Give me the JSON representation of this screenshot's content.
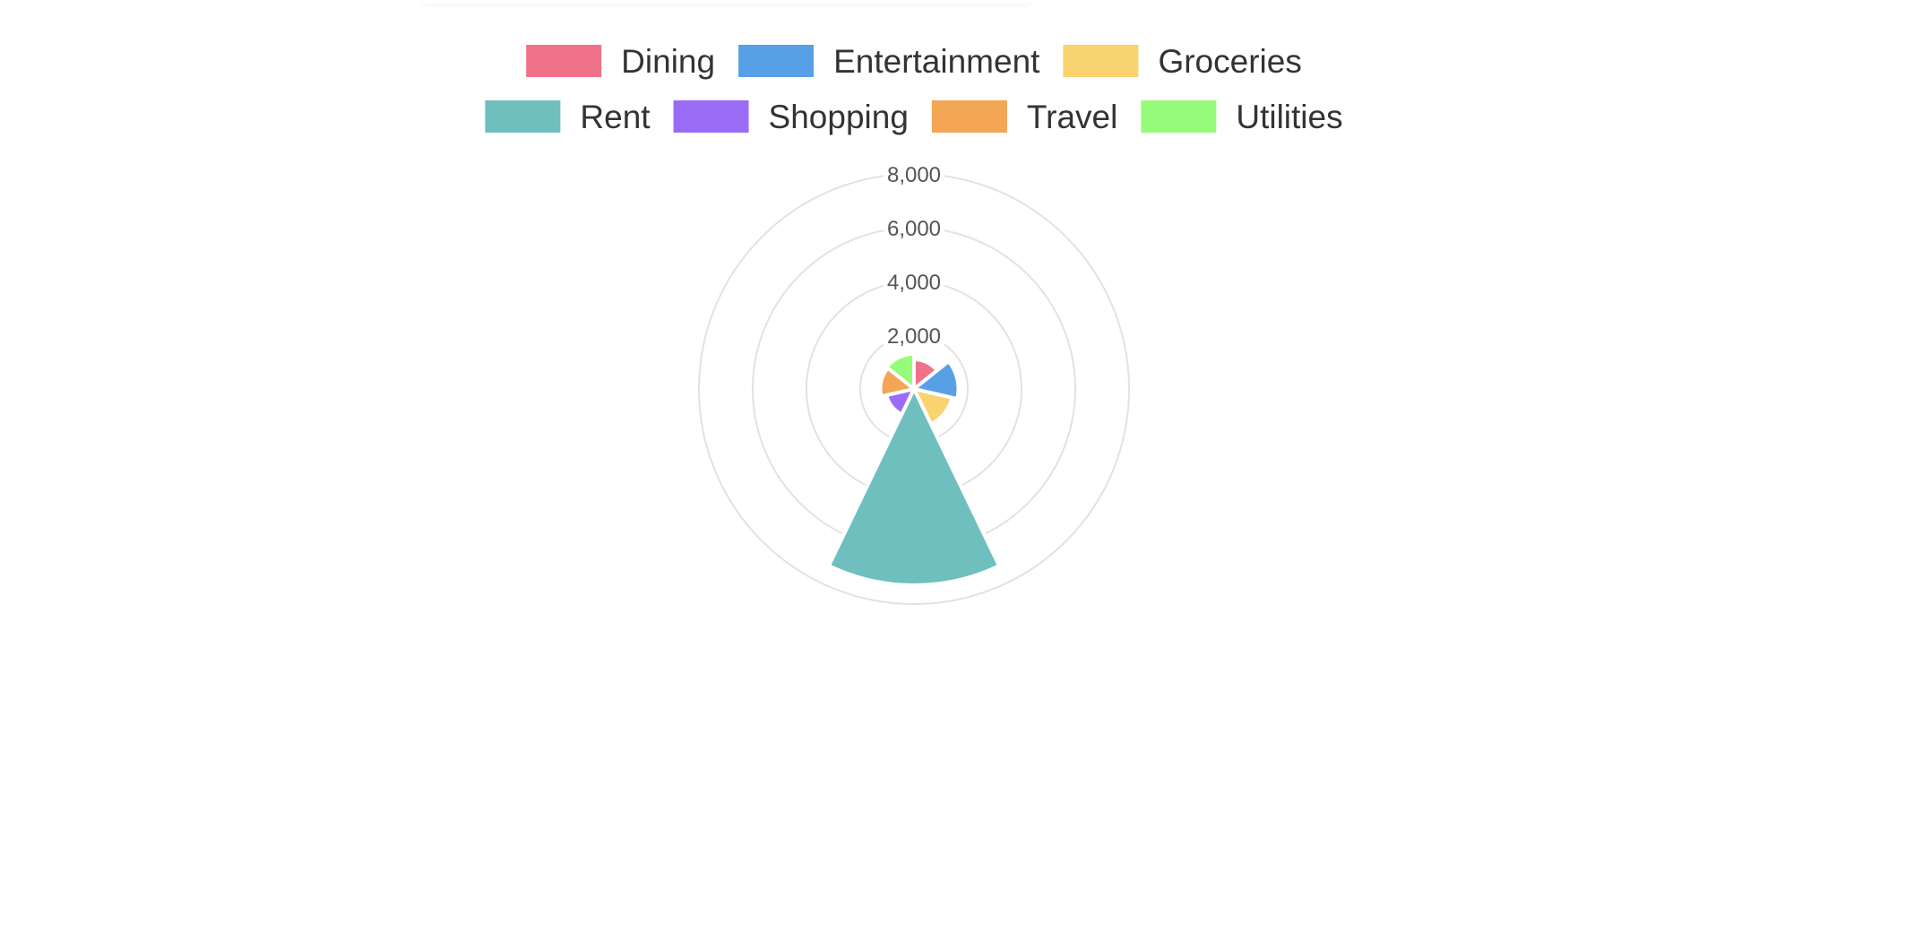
{
  "chart_data": {
    "type": "polarArea",
    "categories": [
      "Dining",
      "Entertainment",
      "Groceries",
      "Rent",
      "Shopping",
      "Travel",
      "Utilities"
    ],
    "values": [
      1100,
      1650,
      1450,
      7300,
      1050,
      1250,
      1300
    ],
    "colors": [
      "#f0718a",
      "#57a0e5",
      "#f8d36f",
      "#6fbfbf",
      "#9a6cf5",
      "#f3a653",
      "#97fb7a"
    ],
    "r_ticks": [
      "2,000",
      "4,000",
      "6,000",
      "8,000"
    ],
    "r_tick_values": [
      2000,
      4000,
      6000,
      8000
    ],
    "r_range": [
      0,
      8000
    ],
    "legend_position": "top",
    "grid": true
  }
}
